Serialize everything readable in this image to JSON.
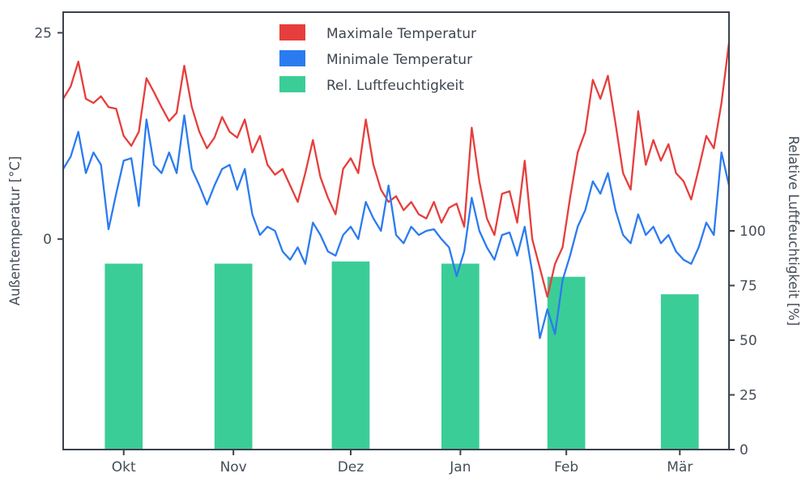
{
  "figure": {
    "background": "#ffffff",
    "text_color": "#454d58",
    "spine_color": "#3b424b"
  },
  "chart_data": {
    "type": "line+bar",
    "title": "",
    "x_unit": "days (late Sep through late Mar, daily weather series)",
    "x_range_days": [
      0,
      176
    ],
    "x_ticks": [
      {
        "label": "Okt",
        "day": 16
      },
      {
        "label": "Nov",
        "day": 45
      },
      {
        "label": "Dez",
        "day": 76
      },
      {
        "label": "Jan",
        "day": 105
      },
      {
        "label": "Feb",
        "day": 133
      },
      {
        "label": "Mär",
        "day": 163
      }
    ],
    "ylabel_left": "Außentemperatur [°C]",
    "ylabel_right": "Relative Luftfeuchtigkeit [%]",
    "ylim_left": [
      -25.5,
      27.5
    ],
    "yticks_left": [
      25,
      0
    ],
    "ylim_right": [
      0,
      200
    ],
    "yticks_right": [
      100,
      75,
      50,
      25,
      0
    ],
    "grid": false,
    "legend_position": "upper left inside, no frame",
    "x_days": [
      0,
      2,
      4,
      6,
      8,
      10,
      12,
      14,
      16,
      18,
      20,
      22,
      24,
      26,
      28,
      30,
      32,
      34,
      36,
      38,
      40,
      42,
      44,
      46,
      48,
      50,
      52,
      54,
      56,
      58,
      60,
      62,
      64,
      66,
      68,
      70,
      72,
      74,
      76,
      78,
      80,
      82,
      84,
      86,
      88,
      90,
      92,
      94,
      96,
      98,
      100,
      102,
      104,
      106,
      108,
      110,
      112,
      114,
      116,
      118,
      120,
      122,
      124,
      126,
      128,
      130,
      132,
      134,
      136,
      138,
      140,
      142,
      144,
      146,
      148,
      150,
      152,
      154,
      156,
      158,
      160,
      162,
      164,
      166,
      168,
      170,
      172,
      174,
      176
    ],
    "series": [
      {
        "name": "Maximale Temperatur",
        "type": "line",
        "axis": "left",
        "color": "#e63e3c",
        "values": [
          17.0,
          18.5,
          21.5,
          17.0,
          16.5,
          17.3,
          16.0,
          15.8,
          12.5,
          11.3,
          13.0,
          19.5,
          17.8,
          16.0,
          14.3,
          15.3,
          21.0,
          16.0,
          13.0,
          11.0,
          12.3,
          14.8,
          13.0,
          12.3,
          14.5,
          10.5,
          12.5,
          9.0,
          7.8,
          8.5,
          6.5,
          4.5,
          8.0,
          12.0,
          7.5,
          5.0,
          3.0,
          8.5,
          9.8,
          8.0,
          14.5,
          9.0,
          6.0,
          4.5,
          5.2,
          3.5,
          4.5,
          3.0,
          2.5,
          4.5,
          2.0,
          3.8,
          4.3,
          1.5,
          13.5,
          7.0,
          2.5,
          0.5,
          5.5,
          5.8,
          2.0,
          9.5,
          0.0,
          -3.5,
          -7.0,
          -3.0,
          -1.0,
          5.0,
          10.5,
          13.0,
          19.3,
          17.0,
          19.8,
          14.0,
          8.0,
          6.0,
          15.5,
          9.0,
          12.0,
          9.5,
          11.5,
          8.0,
          7.0,
          4.8,
          8.5,
          12.5,
          11.0,
          16.5,
          23.8
        ]
      },
      {
        "name": "Minimale Temperatur",
        "type": "line",
        "axis": "left",
        "color": "#2b7bf0",
        "values": [
          8.5,
          10.0,
          13.0,
          8.0,
          10.5,
          9.0,
          1.2,
          5.5,
          9.5,
          9.8,
          4.0,
          14.5,
          9.0,
          8.0,
          10.5,
          8.0,
          15.0,
          8.5,
          6.5,
          4.2,
          6.5,
          8.5,
          9.0,
          6.0,
          8.5,
          3.0,
          0.5,
          1.5,
          1.0,
          -1.5,
          -2.5,
          -1.0,
          -3.0,
          2.0,
          0.5,
          -1.5,
          -2.0,
          0.5,
          1.5,
          0.0,
          4.5,
          2.5,
          1.0,
          6.5,
          0.5,
          -0.5,
          1.5,
          0.5,
          1.0,
          1.2,
          0.0,
          -1.0,
          -4.5,
          -1.5,
          5.0,
          1.0,
          -1.0,
          -2.5,
          0.5,
          0.8,
          -2.0,
          1.5,
          -4.0,
          -12.0,
          -8.5,
          -11.5,
          -5.0,
          -2.0,
          1.5,
          3.5,
          7.0,
          5.5,
          8.0,
          3.5,
          0.5,
          -0.5,
          3.0,
          0.5,
          1.5,
          -0.5,
          0.5,
          -1.5,
          -2.5,
          -3.0,
          -1.0,
          2.0,
          0.5,
          10.5,
          6.5
        ]
      },
      {
        "name": "Rel. Luftfeuchtigkeit",
        "type": "bar",
        "axis": "right",
        "color": "#3bcd97",
        "categories": [
          "Okt",
          "Nov",
          "Dez",
          "Jan",
          "Feb",
          "Mär"
        ],
        "bar_center_days": [
          16,
          45,
          76,
          105,
          133,
          163
        ],
        "bar_width_days": 10,
        "values": [
          85,
          85,
          86,
          85,
          79,
          71
        ]
      }
    ]
  }
}
